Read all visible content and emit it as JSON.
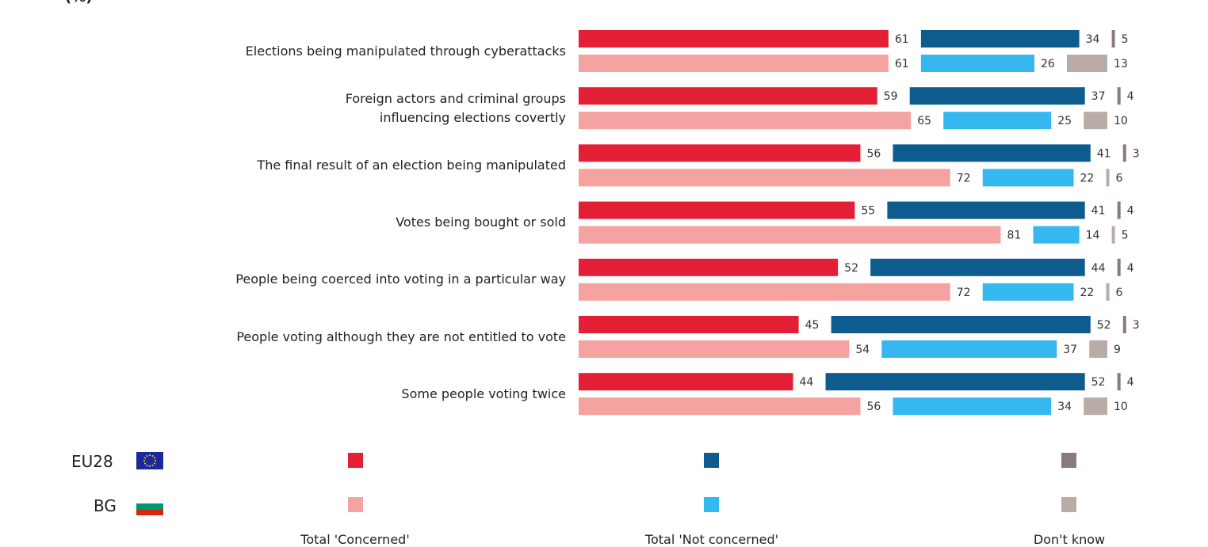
{
  "header_fragment": "(%)",
  "chart_data": {
    "type": "bar",
    "orientation": "horizontal-stacked",
    "categories": [
      "Elections being manipulated through cyberattacks",
      "Foreign actors and criminal groups\ninfluencing elections covertly",
      "The final result of an election being manipulated",
      "Votes being bought or sold",
      "People being coerced into voting in a particular way",
      "People voting although they are not entitled to vote",
      "Some people voting twice"
    ],
    "series": [
      {
        "name": "EU28",
        "values": {
          "concerned": [
            61,
            59,
            56,
            55,
            52,
            45,
            44
          ],
          "not_concerned": [
            34,
            37,
            41,
            41,
            44,
            52,
            52
          ],
          "dont_know": [
            5,
            4,
            3,
            4,
            4,
            3,
            4
          ]
        }
      },
      {
        "name": "BG",
        "values": {
          "concerned": [
            61,
            65,
            72,
            81,
            72,
            54,
            56
          ],
          "not_concerned": [
            26,
            25,
            22,
            14,
            22,
            37,
            34
          ],
          "dont_know": [
            13,
            10,
            6,
            5,
            6,
            9,
            10
          ]
        }
      }
    ],
    "colors": {
      "EU28": {
        "concerned": "#e31e35",
        "not_concerned": "#0e5b8e",
        "dont_know": "#8a7a80"
      },
      "BG": {
        "concerned": "#f4a3a0",
        "not_concerned": "#35b8ef",
        "dont_know": "#b9aba5"
      }
    },
    "legend": {
      "rows": [
        "EU28",
        "BG"
      ],
      "columns": [
        "Total 'Concerned'",
        "Total 'Not concerned'",
        "Don't know"
      ]
    }
  }
}
